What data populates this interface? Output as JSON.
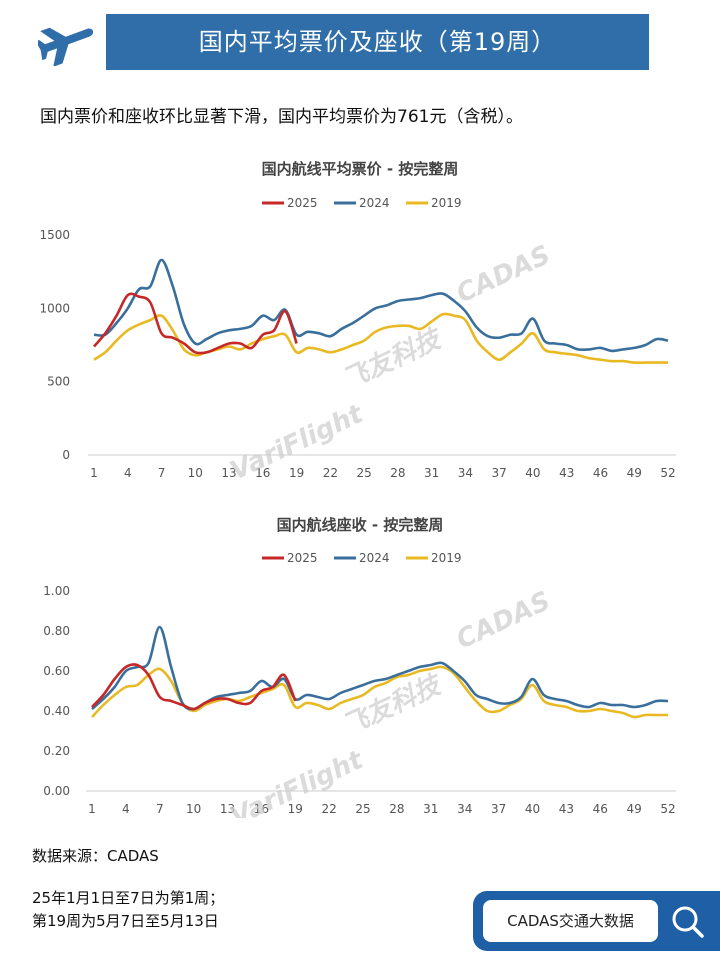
{
  "header": {
    "title": "国内平均票价及座收（第19周）",
    "icon": "airplane-icon"
  },
  "summary": "国内票价和座收环比显著下滑，国内平均票价为761元（含税）。",
  "colors": {
    "header_bg": "#2f6ea8",
    "series_2025": "#c62828",
    "series_2024": "#3a6f9c",
    "series_2019": "#e8b923"
  },
  "watermark": {
    "left": "VariFlight",
    "mid": "飞友科技",
    "right": "CADAS"
  },
  "chart_data": [
    {
      "type": "line",
      "title": "国内航线平均票价 - 按完整周",
      "xlabel": "",
      "ylabel": "",
      "x_ticks": [
        "1",
        "4",
        "7",
        "10",
        "13",
        "16",
        "19",
        "22",
        "25",
        "28",
        "31",
        "34",
        "37",
        "40",
        "43",
        "46",
        "49",
        "52"
      ],
      "y_ticks": [
        "1500",
        "1000",
        "500",
        "0"
      ],
      "ylim": [
        0,
        1500
      ],
      "xlim": [
        1,
        52
      ],
      "legend_position": "top",
      "series": [
        {
          "name": "2025",
          "x": [
            1,
            2,
            3,
            4,
            5,
            6,
            7,
            8,
            9,
            10,
            11,
            12,
            13,
            14,
            15,
            16,
            17,
            18,
            19
          ],
          "values": [
            740,
            830,
            950,
            1090,
            1080,
            1040,
            830,
            800,
            760,
            700,
            700,
            730,
            760,
            760,
            730,
            820,
            850,
            980,
            760
          ]
        },
        {
          "name": "2024",
          "x": [
            1,
            2,
            3,
            4,
            5,
            6,
            7,
            8,
            9,
            10,
            11,
            12,
            13,
            14,
            15,
            16,
            17,
            18,
            19,
            20,
            21,
            22,
            23,
            24,
            25,
            26,
            27,
            28,
            29,
            30,
            31,
            32,
            33,
            34,
            35,
            36,
            37,
            38,
            39,
            40,
            41,
            42,
            43,
            44,
            45,
            46,
            47,
            48,
            49,
            50,
            51,
            52
          ],
          "values": [
            820,
            820,
            900,
            1000,
            1130,
            1150,
            1330,
            1150,
            890,
            760,
            790,
            830,
            850,
            860,
            880,
            950,
            920,
            990,
            820,
            840,
            830,
            810,
            860,
            900,
            950,
            1000,
            1020,
            1050,
            1060,
            1070,
            1090,
            1100,
            1050,
            980,
            870,
            810,
            800,
            820,
            830,
            930,
            780,
            760,
            750,
            720,
            720,
            730,
            710,
            720,
            730,
            750,
            790,
            780
          ]
        },
        {
          "name": "2019",
          "x": [
            1,
            2,
            3,
            4,
            5,
            6,
            7,
            8,
            9,
            10,
            11,
            12,
            13,
            14,
            15,
            16,
            17,
            18,
            19,
            20,
            21,
            22,
            23,
            24,
            25,
            26,
            27,
            28,
            29,
            30,
            31,
            32,
            33,
            34,
            35,
            36,
            37,
            38,
            39,
            40,
            41,
            42,
            43,
            44,
            45,
            46,
            47,
            48,
            49,
            50,
            51,
            52
          ],
          "values": [
            650,
            700,
            780,
            850,
            890,
            920,
            950,
            850,
            720,
            680,
            700,
            720,
            740,
            720,
            760,
            790,
            810,
            820,
            700,
            730,
            720,
            700,
            720,
            750,
            780,
            840,
            870,
            880,
            880,
            860,
            910,
            960,
            950,
            920,
            780,
            700,
            650,
            700,
            760,
            830,
            720,
            700,
            690,
            680,
            660,
            650,
            640,
            640,
            630,
            630,
            630,
            630
          ]
        }
      ]
    },
    {
      "type": "line",
      "title": "国内航线座收 - 按完整周",
      "xlabel": "",
      "ylabel": "",
      "x_ticks": [
        "1",
        "4",
        "7",
        "10",
        "13",
        "16",
        "19",
        "22",
        "25",
        "28",
        "31",
        "34",
        "37",
        "40",
        "43",
        "46",
        "49",
        "52"
      ],
      "y_ticks": [
        "1.00",
        "0.80",
        "0.60",
        "0.40",
        "0.20",
        "0.00"
      ],
      "ylim": [
        0,
        1.0
      ],
      "xlim": [
        1,
        52
      ],
      "legend_position": "top",
      "series": [
        {
          "name": "2025",
          "x": [
            1,
            2,
            3,
            4,
            5,
            6,
            7,
            8,
            9,
            10,
            11,
            12,
            13,
            14,
            15,
            16,
            17,
            18,
            19
          ],
          "values": [
            0.42,
            0.48,
            0.56,
            0.62,
            0.63,
            0.58,
            0.47,
            0.45,
            0.43,
            0.41,
            0.44,
            0.46,
            0.46,
            0.44,
            0.44,
            0.5,
            0.52,
            0.58,
            0.45
          ]
        },
        {
          "name": "2024",
          "x": [
            1,
            2,
            3,
            4,
            5,
            6,
            7,
            8,
            9,
            10,
            11,
            12,
            13,
            14,
            15,
            16,
            17,
            18,
            19,
            20,
            21,
            22,
            23,
            24,
            25,
            26,
            27,
            28,
            29,
            30,
            31,
            32,
            33,
            34,
            35,
            36,
            37,
            38,
            39,
            40,
            41,
            42,
            43,
            44,
            45,
            46,
            47,
            48,
            49,
            50,
            51,
            52
          ],
          "values": [
            0.41,
            0.46,
            0.52,
            0.6,
            0.62,
            0.64,
            0.82,
            0.62,
            0.44,
            0.41,
            0.44,
            0.47,
            0.48,
            0.49,
            0.5,
            0.55,
            0.52,
            0.56,
            0.46,
            0.48,
            0.47,
            0.46,
            0.49,
            0.51,
            0.53,
            0.55,
            0.56,
            0.58,
            0.6,
            0.62,
            0.63,
            0.64,
            0.6,
            0.55,
            0.48,
            0.46,
            0.44,
            0.44,
            0.47,
            0.56,
            0.48,
            0.46,
            0.45,
            0.43,
            0.42,
            0.44,
            0.43,
            0.43,
            0.42,
            0.43,
            0.45,
            0.45
          ]
        },
        {
          "name": "2019",
          "x": [
            1,
            2,
            3,
            4,
            5,
            6,
            7,
            8,
            9,
            10,
            11,
            12,
            13,
            14,
            15,
            16,
            17,
            18,
            19,
            20,
            21,
            22,
            23,
            24,
            25,
            26,
            27,
            28,
            29,
            30,
            31,
            32,
            33,
            34,
            35,
            36,
            37,
            38,
            39,
            40,
            41,
            42,
            43,
            44,
            45,
            46,
            47,
            48,
            49,
            50,
            51,
            52
          ],
          "values": [
            0.37,
            0.43,
            0.48,
            0.52,
            0.53,
            0.58,
            0.61,
            0.55,
            0.44,
            0.4,
            0.43,
            0.45,
            0.46,
            0.45,
            0.47,
            0.49,
            0.51,
            0.53,
            0.42,
            0.44,
            0.43,
            0.41,
            0.44,
            0.46,
            0.48,
            0.52,
            0.54,
            0.57,
            0.58,
            0.6,
            0.61,
            0.62,
            0.59,
            0.52,
            0.45,
            0.4,
            0.4,
            0.43,
            0.46,
            0.53,
            0.45,
            0.43,
            0.42,
            0.4,
            0.4,
            0.41,
            0.4,
            0.39,
            0.37,
            0.38,
            0.38,
            0.38
          ]
        }
      ]
    }
  ],
  "footer": {
    "source": "数据来源：CADAS",
    "note_line1": "25年1月1日至7日为第1周；",
    "note_line2": "第19周为5月7日至5月13日"
  },
  "search": {
    "label": "CADAS交通大数据",
    "icon": "search-icon"
  }
}
